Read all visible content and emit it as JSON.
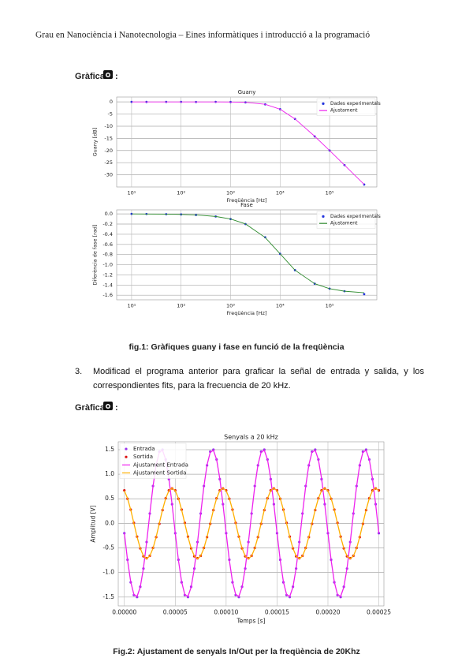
{
  "header": "Grau en Nanociència i Nanotecnologia – Eines informàtiques i introducció a la programació",
  "figure_label_1": [
    "Gràfica",
    ":"
  ],
  "caption_1": "fig.1: Gràfiques guany i fase en funció de la freqüència",
  "item_3": {
    "number": "3.",
    "text": "Modificad el programa anterior para graficar la señal de entrada y salida, y los correspondientes fits, para la frecuencia de 20 kHz."
  },
  "figure_label_2": [
    "Gràfica",
    ":"
  ],
  "caption_2": "Fig.2: Ajustament de senyals In/Out per la freqüència de 20Khz",
  "chart_data": [
    {
      "type": "line",
      "title": "Guany",
      "xlabel": "Freqüència [Hz]",
      "ylabel": "Guany [dB]",
      "xscale": "log",
      "grid": true,
      "legend": "upper right",
      "x": [
        10,
        20,
        50,
        100,
        200,
        500,
        1000,
        2000,
        5000,
        10000,
        20000,
        50000,
        100000,
        200000,
        500000
      ],
      "xlim": [
        5,
        900000
      ],
      "xticks": [
        {
          "value": 10,
          "label": "10¹"
        },
        {
          "value": 100,
          "label": "10²"
        },
        {
          "value": 1000,
          "label": "10³"
        },
        {
          "value": 10000,
          "label": "10⁴"
        },
        {
          "value": 100000,
          "label": "10⁵"
        }
      ],
      "ylim": [
        -35,
        2
      ],
      "yticks": [
        0,
        -5,
        -10,
        -15,
        -20,
        -25,
        -30
      ],
      "series": [
        {
          "name": "Dades experimentals",
          "color": "#2233dd",
          "style": "points",
          "values": [
            0.02,
            -0.01,
            0.01,
            0,
            -0.02,
            0,
            -0.05,
            -0.2,
            -1.0,
            -3.0,
            -7.0,
            -14.2,
            -20.0,
            -26.0,
            -34.0
          ]
        },
        {
          "name": "Ajustament",
          "color": "#ee22ee",
          "style": "line",
          "values": [
            0,
            0,
            0,
            0,
            0,
            -0.001,
            -0.04,
            -0.17,
            -0.97,
            -3.01,
            -6.99,
            -14.15,
            -20.0,
            -26.02,
            -33.98
          ]
        }
      ]
    },
    {
      "type": "line",
      "title": "Fase",
      "xlabel": "Freqüència [Hz]",
      "ylabel": "Diferència de fase [rad]",
      "xscale": "log",
      "grid": true,
      "legend": "upper right",
      "x": [
        10,
        20,
        50,
        100,
        200,
        500,
        1000,
        2000,
        5000,
        10000,
        20000,
        50000,
        100000,
        200000,
        500000
      ],
      "xlim": [
        5,
        900000
      ],
      "xticks": [
        {
          "value": 10,
          "label": "10¹"
        },
        {
          "value": 100,
          "label": "10²"
        },
        {
          "value": 1000,
          "label": "10³"
        },
        {
          "value": 10000,
          "label": "10⁴"
        },
        {
          "value": 100000,
          "label": "10⁵"
        }
      ],
      "ylim": [
        -1.69,
        0.08
      ],
      "yticks": [
        {
          "value": 0,
          "label": "0.0"
        },
        -0.2,
        -0.4,
        -0.6,
        -0.8,
        {
          "value": -1,
          "label": "-1.0"
        },
        -1.2,
        -1.4,
        -1.6
      ],
      "series": [
        {
          "name": "Dades experimentals",
          "color": "#2233dd",
          "style": "points",
          "values": [
            0,
            -0.002,
            -0.005,
            -0.01,
            -0.02,
            -0.05,
            -0.1,
            -0.2,
            -0.46,
            -0.785,
            -1.107,
            -1.373,
            -1.471,
            -1.521,
            -1.58
          ]
        },
        {
          "name": "Ajustament",
          "color": "#2e8b2e",
          "style": "line",
          "values": [
            -0.001,
            -0.002,
            -0.005,
            -0.01,
            -0.02,
            -0.05,
            -0.1,
            -0.197,
            -0.464,
            -0.785,
            -1.107,
            -1.373,
            -1.471,
            -1.521,
            -1.551
          ]
        }
      ]
    },
    {
      "type": "line",
      "title": "Senyals a 20 kHz",
      "xlabel": "Temps [s]",
      "ylabel": "Amplitud [V]",
      "grid": true,
      "legend": "upper left",
      "x": [
        0,
        3.125e-06,
        6.25e-06,
        9.375e-06,
        1.25e-05,
        1.5625e-05,
        1.875e-05,
        2.1875e-05,
        2.5e-05,
        2.8125e-05,
        3.125e-05,
        3.4375e-05,
        3.75e-05,
        4.0625e-05,
        4.375e-05,
        4.6875e-05,
        5e-05,
        5.3125e-05,
        5.625e-05,
        5.9375e-05,
        6.25e-05,
        6.5625e-05,
        6.875e-05,
        7.1875e-05,
        7.5e-05,
        7.8125e-05,
        8.125e-05,
        8.4375e-05,
        8.75e-05,
        9.0625e-05,
        9.375e-05,
        9.6875e-05,
        0.0001,
        0.000103125,
        0.00010625,
        0.000109375,
        0.0001125,
        0.000115625,
        0.00011875,
        0.000121875,
        0.000125,
        0.000128125,
        0.00013125,
        0.000134375,
        0.0001375,
        0.000140625,
        0.00014375,
        0.000146875,
        0.00015,
        0.000153125,
        0.00015625,
        0.000159375,
        0.0001625,
        0.000165625,
        0.00016875,
        0.000171875,
        0.000175,
        0.000178125,
        0.00018125,
        0.000184375,
        0.0001875,
        0.000190625,
        0.00019375,
        0.000196875,
        0.0002,
        0.000203125,
        0.00020625,
        0.000209375,
        0.0002125,
        0.000215625,
        0.00021875,
        0.000221875,
        0.000225,
        0.000228125,
        0.00023125,
        0.000234375,
        0.0002375,
        0.000240625,
        0.00024375,
        0.000246875,
        0.00025
      ],
      "xlim": [
        -6e-06,
        0.000255
      ],
      "xticks": [
        {
          "value": 0,
          "label": "0.00000"
        },
        {
          "value": 5e-05,
          "label": "0.00005"
        },
        {
          "value": 0.0001,
          "label": "0.00010"
        },
        {
          "value": 0.00015,
          "label": "0.00015"
        },
        {
          "value": 0.0002,
          "label": "0.00020"
        },
        {
          "value": 0.00025,
          "label": "0.00025"
        }
      ],
      "ylim": [
        -1.68,
        1.66
      ],
      "yticks": [
        -1.5,
        {
          "value": -1,
          "label": "-1.0"
        },
        -0.5,
        {
          "value": 0,
          "label": "0.0"
        },
        0.5,
        {
          "value": 1,
          "label": "1.0"
        },
        1.5
      ],
      "series": [
        {
          "name": "Entrada",
          "color": "#9933ee",
          "style": "points",
          "values": [
            -0.2,
            -0.74,
            -1.2,
            -1.46,
            -1.5,
            -1.29,
            -0.92,
            -0.38,
            0.2,
            0.76,
            1.18,
            1.46,
            1.5,
            1.3,
            0.9,
            0.39,
            -0.2,
            -0.74,
            -1.2,
            -1.46,
            -1.5,
            -1.29,
            -0.92,
            -0.38,
            0.2,
            0.76,
            1.18,
            1.46,
            1.5,
            1.3,
            0.9,
            0.39,
            -0.2,
            -0.74,
            -1.2,
            -1.46,
            -1.5,
            -1.29,
            -0.92,
            -0.38,
            0.2,
            0.76,
            1.18,
            1.46,
            1.5,
            1.3,
            0.9,
            0.39,
            -0.2,
            -0.74,
            -1.2,
            -1.46,
            -1.5,
            -1.29,
            -0.92,
            -0.38,
            0.2,
            0.76,
            1.18,
            1.46,
            1.5,
            1.3,
            0.9,
            0.39,
            -0.2,
            -0.74,
            -1.2,
            -1.46,
            -1.5,
            -1.29,
            -0.92,
            -0.38,
            0.2,
            0.76,
            1.18,
            1.46,
            1.5,
            1.3,
            0.9,
            0.39,
            -0.2
          ]
        },
        {
          "name": "Sortida",
          "color": "#dd1111",
          "style": "points",
          "values": [
            0.67,
            0.5,
            0.28,
            0.01,
            -0.27,
            -0.51,
            -0.67,
            -0.71,
            -0.66,
            -0.5,
            -0.28,
            -0.01,
            0.27,
            0.51,
            0.67,
            0.71,
            0.67,
            0.5,
            0.28,
            0.01,
            -0.27,
            -0.51,
            -0.67,
            -0.71,
            -0.66,
            -0.5,
            -0.28,
            -0.01,
            0.27,
            0.51,
            0.67,
            0.71,
            0.67,
            0.5,
            0.28,
            0.01,
            -0.27,
            -0.51,
            -0.67,
            -0.71,
            -0.66,
            -0.5,
            -0.28,
            -0.01,
            0.27,
            0.51,
            0.67,
            0.71,
            0.67,
            0.5,
            0.28,
            0.01,
            -0.27,
            -0.51,
            -0.67,
            -0.71,
            -0.66,
            -0.5,
            -0.28,
            -0.01,
            0.27,
            0.51,
            0.67,
            0.71,
            0.67,
            0.5,
            0.28,
            0.01,
            -0.27,
            -0.51,
            -0.67,
            -0.71,
            -0.66,
            -0.5,
            -0.28,
            -0.01,
            0.27,
            0.51,
            0.67,
            0.71,
            0.67
          ]
        },
        {
          "name": "Ajustament Entrada",
          "color": "#ee22ee",
          "style": "line",
          "values": [
            -0.196,
            -0.75,
            -1.19,
            -1.449,
            -1.487,
            -1.299,
            -0.913,
            -0.388,
            0.196,
            0.75,
            1.19,
            1.449,
            1.487,
            1.299,
            0.913,
            0.388,
            -0.196,
            -0.75,
            -1.19,
            -1.449,
            -1.487,
            -1.299,
            -0.913,
            -0.388,
            0.196,
            0.75,
            1.19,
            1.449,
            1.487,
            1.299,
            0.913,
            0.388,
            -0.196,
            -0.75,
            -1.19,
            -1.449,
            -1.487,
            -1.299,
            -0.913,
            -0.388,
            0.196,
            0.75,
            1.19,
            1.449,
            1.487,
            1.299,
            0.913,
            0.388,
            -0.196,
            -0.75,
            -1.19,
            -1.449,
            -1.487,
            -1.299,
            -0.913,
            -0.388,
            0.196,
            0.75,
            1.19,
            1.449,
            1.487,
            1.299,
            0.913,
            0.388,
            -0.196,
            -0.75,
            -1.19,
            -1.449,
            -1.487,
            -1.299,
            -0.913,
            -0.388,
            0.196,
            0.75,
            1.19,
            1.449,
            1.487,
            1.299,
            0.913,
            0.388,
            -0.196
          ]
        },
        {
          "name": "Ajustament Sortida",
          "color": "#ffb000",
          "style": "line",
          "values": [
            0.665,
            0.509,
            0.276,
            0,
            -0.276,
            -0.509,
            -0.665,
            -0.72,
            -0.665,
            -0.509,
            -0.276,
            0,
            0.276,
            0.509,
            0.665,
            0.72,
            0.665,
            0.509,
            0.276,
            0,
            -0.276,
            -0.509,
            -0.665,
            -0.72,
            -0.665,
            -0.509,
            -0.276,
            0,
            0.276,
            0.509,
            0.665,
            0.72,
            0.665,
            0.509,
            0.276,
            0,
            -0.276,
            -0.509,
            -0.665,
            -0.72,
            -0.665,
            -0.509,
            -0.276,
            0,
            0.276,
            0.509,
            0.665,
            0.72,
            0.665,
            0.509,
            0.276,
            0,
            -0.276,
            -0.509,
            -0.665,
            -0.72,
            -0.665,
            -0.509,
            -0.276,
            0,
            0.276,
            0.509,
            0.665,
            0.72,
            0.665,
            0.509,
            0.276,
            0,
            -0.276,
            -0.509,
            -0.665,
            -0.72,
            -0.665,
            -0.509,
            -0.276,
            0,
            0.276,
            0.509,
            0.665,
            0.72,
            0.665
          ]
        }
      ]
    }
  ]
}
